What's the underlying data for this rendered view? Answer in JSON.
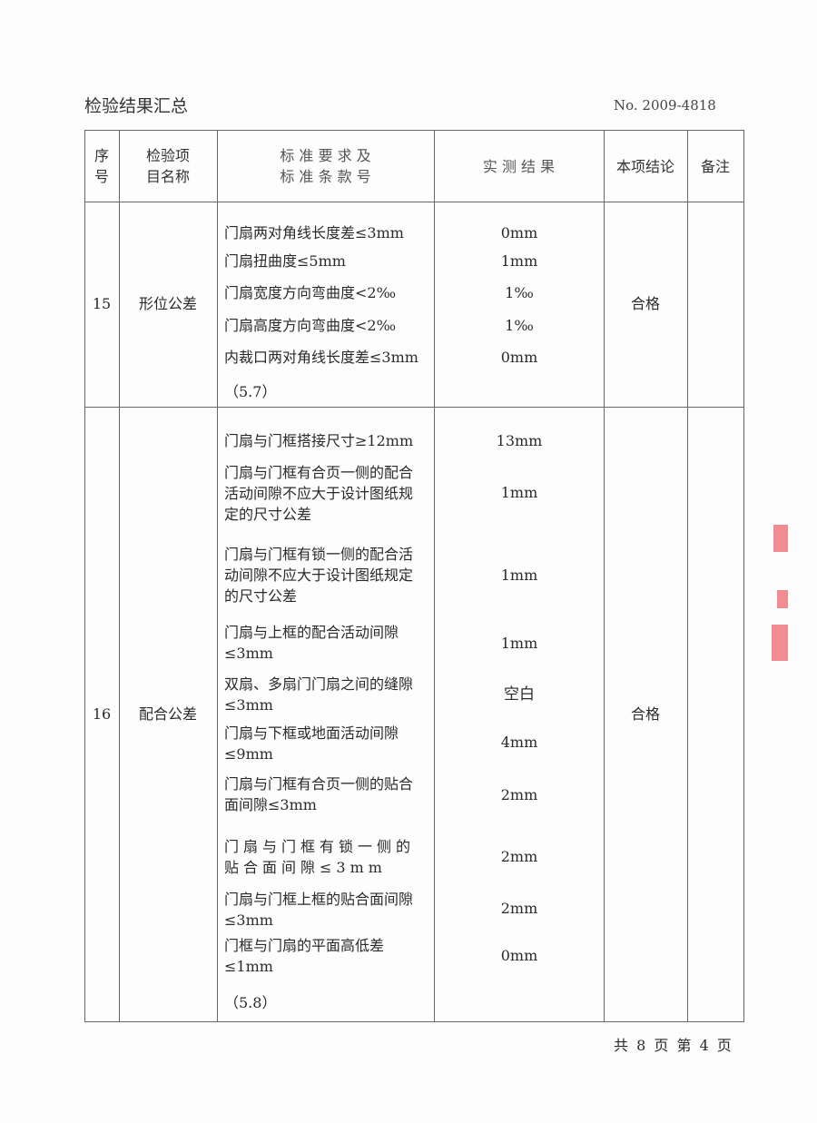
{
  "title": "检验结果汇总",
  "doc_no": "No. 2009-4818",
  "headers": {
    "seq": "序\n号",
    "item": "检验项\n目名称",
    "standard": "标 准 要 求 及\n标 准 条 款 号",
    "result": "实 测 结 果",
    "conclusion": "本项结论",
    "remark": "备注"
  },
  "rows": [
    {
      "seq": "15",
      "item": "形位公差",
      "conclusion": "合格",
      "standards": [
        "门扇两对角线长度差≤3mm",
        "门扇扭曲度≤5mm",
        "门扇宽度方向弯曲度<2‰",
        "门扇高度方向弯曲度<2‰",
        "内裁口两对角线长度差≤3mm"
      ],
      "results": [
        "0mm",
        "1mm",
        "1‰",
        "1‰",
        "0mm"
      ],
      "clause": "（5.7）"
    },
    {
      "seq": "16",
      "item": "配合公差",
      "conclusion": "合格",
      "standards": [
        "门扇与门框搭接尺寸≥12mm",
        "门扇与门框有合页一侧的配合活动间隙不应大于设计图纸规定的尺寸公差",
        "门扇与门框有锁一侧的配合活动间隙不应大于设计图纸规定的尺寸公差",
        "门扇与上框的配合活动间隙≤3mm",
        "双扇、多扇门门扇之间的缝隙≤3mm",
        "门扇与下框或地面活动间隙≤9mm",
        "门扇与门框有合页一侧的贴合面间隙≤3mm",
        "门扇与门框有锁一侧的贴合面间隙≤3mm",
        "门扇与门框上框的贴合面间隙≤3mm",
        "门框与门扇的平面高低差≤1mm"
      ],
      "results": [
        "13mm",
        "1mm",
        "1mm",
        "1mm",
        "空白",
        "4mm",
        "2mm",
        "2mm",
        "2mm",
        "0mm"
      ],
      "clause": "（5.8）"
    }
  ],
  "footer": "共 8 页  第 4 页",
  "colors": {
    "stamp": "#e8323a",
    "lines": "#666666"
  }
}
